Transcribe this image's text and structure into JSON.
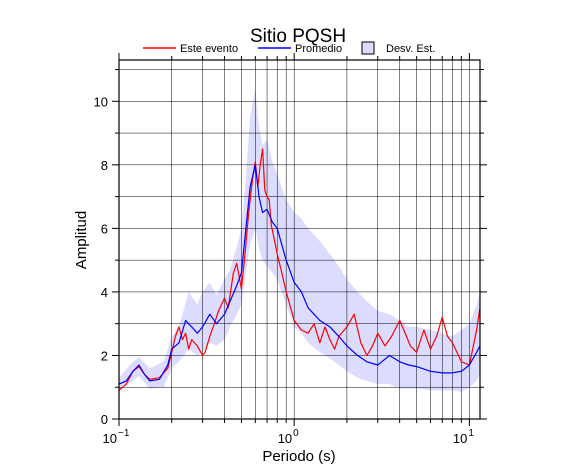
{
  "chart_data": {
    "type": "line",
    "title": "Sitio PQSH",
    "xlabel": "Periodo (s)",
    "ylabel": "Amplitud",
    "xscale": "log",
    "xlim": [
      0.1,
      11.5
    ],
    "ylim": [
      0,
      11.3
    ],
    "grid": true,
    "legend_position": "top",
    "x_ticks": [
      {
        "value": 0.1,
        "base": "10",
        "exp": "−1"
      },
      {
        "value": 1,
        "base": "10",
        "exp": "0"
      },
      {
        "value": 10,
        "base": "10",
        "exp": "1"
      }
    ],
    "y_ticks": [
      0,
      2,
      4,
      6,
      8,
      10
    ],
    "legend": [
      {
        "label": "Este evento",
        "kind": "line",
        "color": "#ff0000"
      },
      {
        "label": "Promedio",
        "kind": "line",
        "color": "#0000ff"
      },
      {
        "label": "Desv. Est.",
        "kind": "box",
        "color": "#dcdcff"
      }
    ],
    "series": [
      {
        "name": "Este evento",
        "color": "#ff0000",
        "x": [
          0.1,
          0.11,
          0.12,
          0.13,
          0.14,
          0.15,
          0.17,
          0.19,
          0.2,
          0.21,
          0.22,
          0.23,
          0.24,
          0.25,
          0.26,
          0.28,
          0.3,
          0.31,
          0.33,
          0.35,
          0.37,
          0.4,
          0.42,
          0.45,
          0.47,
          0.5,
          0.52,
          0.55,
          0.58,
          0.6,
          0.62,
          0.64,
          0.66,
          0.68,
          0.7,
          0.72,
          0.74,
          0.76,
          0.8,
          0.85,
          0.9,
          1.0,
          1.1,
          1.2,
          1.3,
          1.4,
          1.5,
          1.6,
          1.7,
          1.8,
          2.0,
          2.2,
          2.4,
          2.6,
          2.8,
          3.0,
          3.3,
          3.6,
          4.0,
          4.3,
          4.6,
          5.0,
          5.5,
          6.0,
          6.5,
          7.0,
          7.5,
          8.0,
          9.0,
          10.0,
          11.0,
          11.5
        ],
        "y": [
          0.9,
          1.1,
          1.5,
          1.65,
          1.4,
          1.25,
          1.3,
          1.6,
          2.1,
          2.6,
          2.9,
          2.5,
          2.7,
          2.2,
          2.5,
          2.3,
          2.0,
          2.1,
          2.6,
          3.0,
          3.4,
          3.8,
          3.5,
          4.6,
          4.9,
          4.1,
          5.0,
          6.5,
          7.6,
          8.1,
          7.3,
          8.0,
          8.5,
          7.2,
          7.0,
          6.9,
          6.1,
          5.8,
          5.2,
          4.6,
          4.0,
          3.1,
          2.8,
          2.7,
          3.0,
          2.4,
          2.9,
          2.5,
          2.2,
          2.6,
          2.9,
          3.3,
          2.4,
          2.0,
          2.3,
          2.7,
          2.3,
          2.6,
          3.1,
          2.7,
          2.3,
          2.1,
          2.8,
          2.2,
          2.6,
          3.2,
          2.6,
          2.4,
          1.8,
          1.7,
          2.8,
          3.5
        ]
      },
      {
        "name": "Promedio",
        "color": "#0000ff",
        "x": [
          0.1,
          0.11,
          0.12,
          0.13,
          0.14,
          0.15,
          0.17,
          0.19,
          0.2,
          0.22,
          0.24,
          0.26,
          0.28,
          0.3,
          0.33,
          0.36,
          0.4,
          0.43,
          0.47,
          0.5,
          0.53,
          0.56,
          0.6,
          0.63,
          0.66,
          0.7,
          0.75,
          0.8,
          0.9,
          1.0,
          1.1,
          1.2,
          1.4,
          1.6,
          1.8,
          2.0,
          2.3,
          2.6,
          3.0,
          3.5,
          4.0,
          4.5,
          5.0,
          6.0,
          7.0,
          8.0,
          9.0,
          10.0,
          11.0,
          11.5
        ],
        "y": [
          1.1,
          1.2,
          1.5,
          1.7,
          1.4,
          1.2,
          1.25,
          1.7,
          2.2,
          2.4,
          3.1,
          2.9,
          2.7,
          2.9,
          3.3,
          3.0,
          3.3,
          3.7,
          4.2,
          4.6,
          6.0,
          7.3,
          8.0,
          7.0,
          6.5,
          6.6,
          6.2,
          6.0,
          5.0,
          4.3,
          4.0,
          3.5,
          3.1,
          2.9,
          2.6,
          2.3,
          2.0,
          1.8,
          1.7,
          2.0,
          1.8,
          1.7,
          1.65,
          1.5,
          1.45,
          1.45,
          1.5,
          1.7,
          2.1,
          2.3
        ]
      }
    ],
    "band": {
      "name": "Desv. Est.",
      "color": "#dcdcff",
      "x": [
        0.1,
        0.12,
        0.13,
        0.15,
        0.18,
        0.2,
        0.22,
        0.25,
        0.28,
        0.3,
        0.33,
        0.36,
        0.4,
        0.43,
        0.47,
        0.5,
        0.53,
        0.56,
        0.6,
        0.63,
        0.66,
        0.7,
        0.75,
        0.8,
        0.9,
        1.0,
        1.1,
        1.2,
        1.4,
        1.6,
        1.8,
        2.0,
        2.3,
        2.6,
        3.0,
        3.5,
        4.0,
        4.5,
        5.0,
        6.0,
        7.0,
        8.0,
        9.0,
        10.0,
        11.0,
        11.5
      ],
      "upper": [
        1.3,
        1.8,
        1.95,
        1.6,
        1.8,
        2.6,
        2.9,
        4.0,
        3.6,
        4.0,
        4.3,
        3.9,
        4.4,
        4.7,
        5.4,
        6.0,
        7.6,
        9.5,
        10.4,
        9.2,
        8.6,
        8.8,
        8.1,
        7.7,
        6.9,
        6.5,
        6.3,
        6.0,
        5.6,
        5.2,
        4.8,
        4.4,
        4.0,
        3.7,
        3.4,
        3.3,
        3.1,
        2.9,
        2.9,
        2.8,
        2.7,
        2.6,
        2.8,
        3.0,
        3.6,
        4.0
      ],
      "lower": [
        0.9,
        1.2,
        1.35,
        0.95,
        1.0,
        1.6,
        1.8,
        2.2,
        2.0,
        2.1,
        2.4,
        2.3,
        2.5,
        2.9,
        3.3,
        3.6,
        4.6,
        5.5,
        6.0,
        5.4,
        5.0,
        4.8,
        4.6,
        4.4,
        3.6,
        2.9,
        2.7,
        2.4,
        2.1,
        1.9,
        1.7,
        1.5,
        1.3,
        1.2,
        1.1,
        1.1,
        0.95,
        0.95,
        0.95,
        0.9,
        0.9,
        0.9,
        0.85,
        1.0,
        1.2,
        1.4
      ]
    }
  }
}
